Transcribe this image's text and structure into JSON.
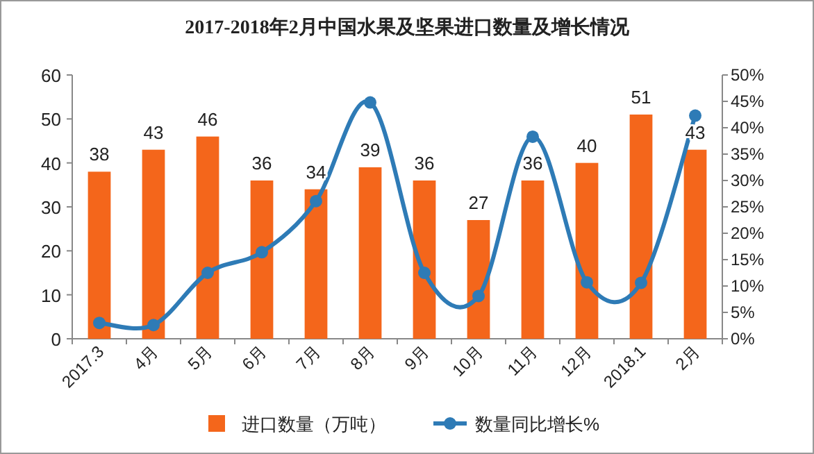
{
  "chart_data": {
    "type": "bar",
    "title": "2017-2018年2月中国水果及坚果进口数量及增长情况",
    "categories": [
      "2017.3",
      "4月",
      "5月",
      "6月",
      "7月",
      "8月",
      "9月",
      "10月",
      "11月",
      "12月",
      "2018.1",
      "2月"
    ],
    "series": [
      {
        "name": "进口数量（万吨）",
        "color": "#f4661b",
        "values": [
          38,
          43,
          46,
          36,
          34,
          39,
          36,
          27,
          36,
          40,
          51,
          43
        ],
        "value_labels": [
          "38",
          "43",
          "46",
          "36",
          "34",
          "39",
          "36",
          "27",
          "36",
          "40",
          "51",
          "43"
        ]
      },
      {
        "name": "数量同比增长%",
        "type": "line",
        "axis": "y2",
        "color": "#2e7bb6",
        "marker": "circle",
        "values": [
          3.0,
          2.6,
          12.5,
          16.4,
          26.1,
          44.8,
          12.5,
          8.1,
          38.3,
          10.7,
          10.6,
          42.3
        ]
      }
    ],
    "ylim": [
      0,
      60
    ],
    "yticks": [
      0,
      10,
      20,
      30,
      40,
      50,
      60
    ],
    "y2lim": [
      0,
      50
    ],
    "y2ticks": [
      {
        "value": 0,
        "label": "0%"
      },
      {
        "value": 5,
        "label": "5%"
      },
      {
        "value": 10,
        "label": "10%"
      },
      {
        "value": 15,
        "label": "15%"
      },
      {
        "value": 20,
        "label": "20%"
      },
      {
        "value": 25,
        "label": "25%"
      },
      {
        "value": 30,
        "label": "30%"
      },
      {
        "value": 35,
        "label": "35%"
      },
      {
        "value": 40,
        "label": "40%"
      },
      {
        "value": 45,
        "label": "45%"
      },
      {
        "value": 50,
        "label": "50%"
      }
    ],
    "legend": "bottom"
  }
}
